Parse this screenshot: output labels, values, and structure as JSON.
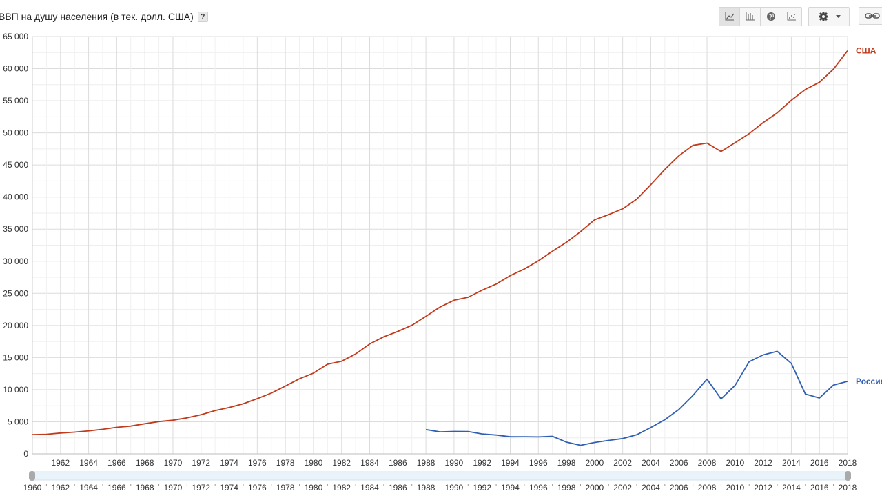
{
  "header": {
    "title": "ВВП на душу населения (в тек. долл. США)",
    "help_label": "?"
  },
  "toolbar": {
    "buttons": [
      {
        "icon": "line-chart-icon",
        "active": true
      },
      {
        "icon": "bar-chart-icon",
        "active": false
      },
      {
        "icon": "globe-icon",
        "active": false
      },
      {
        "icon": "scatter-icon",
        "active": false
      }
    ],
    "settings_icon": "gear-icon",
    "link_icon": "link-icon"
  },
  "chart_data": {
    "type": "line",
    "title": "ВВП на душу населения (в тек. долл. США)",
    "xlim": [
      1960,
      2018
    ],
    "ylim": [
      0,
      65000
    ],
    "yticks": [
      0,
      5000,
      10000,
      15000,
      20000,
      25000,
      30000,
      35000,
      40000,
      45000,
      50000,
      55000,
      60000,
      65000
    ],
    "ytick_labels": [
      "0",
      "5 000",
      "10 000",
      "15 000",
      "20 000",
      "25 000",
      "30 000",
      "35 000",
      "40 000",
      "45 000",
      "50 000",
      "55 000",
      "60 000",
      "65 000"
    ],
    "xticks": [
      1962,
      1964,
      1966,
      1968,
      1970,
      1972,
      1974,
      1976,
      1978,
      1980,
      1982,
      1984,
      1986,
      1988,
      1990,
      1992,
      1994,
      1996,
      1998,
      2000,
      2002,
      2004,
      2006,
      2008,
      2010,
      2012,
      2014,
      2016,
      2018
    ],
    "xtick_labels": [
      "1962",
      "1964",
      "1966",
      "1968",
      "1970",
      "1972",
      "1974",
      "1976",
      "1978",
      "1980",
      "1982",
      "1984",
      "1986",
      "1988",
      "1990",
      "1992",
      "1994",
      "1996",
      "1998",
      "2000",
      "2002",
      "2004",
      "2006",
      "2008",
      "2010",
      "2012",
      "2014",
      "2016",
      "2018"
    ],
    "grid": true,
    "legend": "line-end labels",
    "series": [
      {
        "name": "США",
        "color": "#c23a1c",
        "x": [
          1960,
          1961,
          1962,
          1963,
          1964,
          1965,
          1966,
          1967,
          1968,
          1969,
          1970,
          1971,
          1972,
          1973,
          1974,
          1975,
          1976,
          1977,
          1978,
          1979,
          1980,
          1981,
          1982,
          1983,
          1984,
          1985,
          1986,
          1987,
          1988,
          1989,
          1990,
          1991,
          1992,
          1993,
          1994,
          1995,
          1996,
          1997,
          1998,
          1999,
          2000,
          2001,
          2002,
          2003,
          2004,
          2005,
          2006,
          2007,
          2008,
          2009,
          2010,
          2011,
          2012,
          2013,
          2014,
          2015,
          2016,
          2017,
          2018
        ],
        "values": [
          3000,
          3050,
          3250,
          3380,
          3580,
          3830,
          4140,
          4330,
          4700,
          5030,
          5240,
          5610,
          6090,
          6740,
          7230,
          7800,
          8600,
          9460,
          10560,
          11690,
          12580,
          13970,
          14430,
          15560,
          17120,
          18230,
          19070,
          20030,
          21420,
          22860,
          23930,
          24390,
          25500,
          26450,
          27760,
          28780,
          30070,
          31570,
          32950,
          34620,
          36450,
          37270,
          38170,
          39680,
          41920,
          44310,
          46440,
          48060,
          48400,
          47100,
          48470,
          49880,
          51600,
          53120,
          55070,
          56760,
          57880,
          59930,
          62790
        ]
      },
      {
        "name": "Россия",
        "color": "#2f5fb3",
        "x": [
          1988,
          1989,
          1990,
          1991,
          1992,
          1993,
          1994,
          1995,
          1996,
          1997,
          1998,
          1999,
          2000,
          2001,
          2002,
          2003,
          2004,
          2005,
          2006,
          2007,
          2008,
          2009,
          2010,
          2011,
          2012,
          2013,
          2014,
          2015,
          2016,
          2017,
          2018
        ],
        "values": [
          3780,
          3430,
          3490,
          3480,
          3100,
          2930,
          2660,
          2670,
          2640,
          2740,
          1830,
          1330,
          1770,
          2100,
          2380,
          2980,
          4100,
          5320,
          6920,
          9100,
          11640,
          8560,
          10670,
          14350,
          15420,
          15970,
          14100,
          9310,
          8700,
          10720,
          11290
        ]
      }
    ],
    "range_selector": {
      "labels": [
        "1960",
        "1962",
        "1964",
        "1966",
        "1968",
        "1970",
        "1972",
        "1974",
        "1976",
        "1978",
        "1980",
        "1982",
        "1984",
        "1986",
        "1988",
        "1990",
        "1992",
        "1994",
        "1996",
        "1998",
        "2000",
        "2002",
        "2004",
        "2006",
        "2008",
        "2010",
        "2012",
        "2014",
        "2016",
        "2018"
      ]
    }
  }
}
